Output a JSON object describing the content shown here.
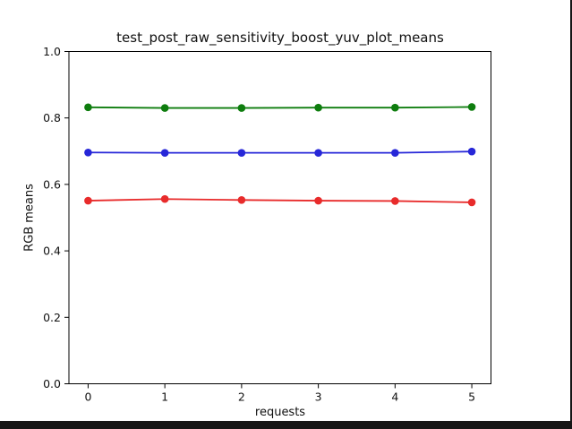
{
  "window": {
    "background_color": "#161616",
    "figure_background_color": "#ffffff"
  },
  "chart_data": {
    "type": "line",
    "title": "test_post_raw_sensitivity_boost_yuv_plot_means",
    "xlabel": "requests",
    "ylabel": "RGB means",
    "x": [
      0,
      1,
      2,
      3,
      4,
      5
    ],
    "series": [
      {
        "name": "green",
        "color": "#0e7d0e",
        "values": [
          0.832,
          0.83,
          0.83,
          0.831,
          0.831,
          0.833
        ]
      },
      {
        "name": "blue",
        "color": "#2727d8",
        "values": [
          0.696,
          0.695,
          0.695,
          0.695,
          0.695,
          0.699
        ]
      },
      {
        "name": "red",
        "color": "#e82b2b",
        "values": [
          0.551,
          0.556,
          0.553,
          0.551,
          0.55,
          0.546
        ]
      }
    ],
    "xlim": [
      -0.25,
      5.25
    ],
    "ylim": [
      0,
      1
    ],
    "xticks": [
      0,
      1,
      2,
      3,
      4,
      5
    ],
    "xtick_labels": [
      "0",
      "1",
      "2",
      "3",
      "4",
      "5"
    ],
    "yticks": [
      0.0,
      0.2,
      0.4,
      0.6,
      0.8,
      1.0
    ],
    "ytick_labels": [
      "0.0",
      "0.2",
      "0.4",
      "0.6",
      "0.8",
      "1.0"
    ],
    "grid": false,
    "legend": null,
    "marker": "o",
    "axes_color": "#000000"
  }
}
